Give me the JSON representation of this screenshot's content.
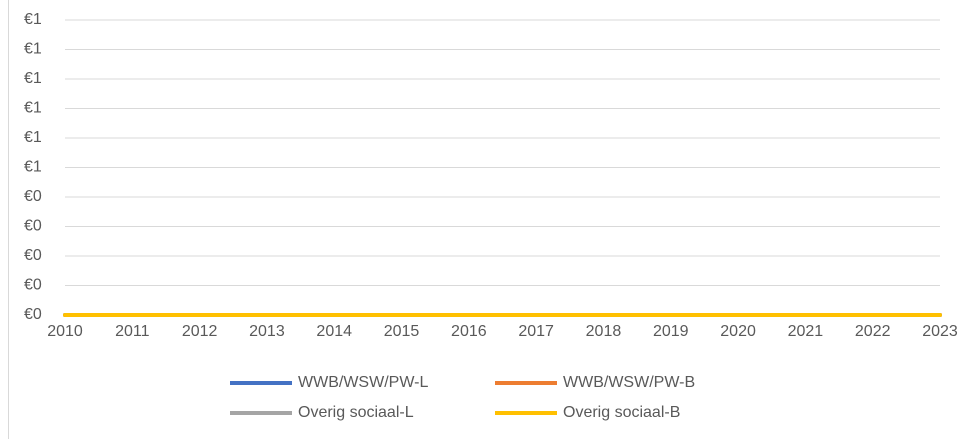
{
  "chart_data": {
    "type": "line",
    "categories": [
      "2010",
      "2011",
      "2012",
      "2013",
      "2014",
      "2015",
      "2016",
      "2017",
      "2018",
      "2019",
      "2020",
      "2021",
      "2022",
      "2023"
    ],
    "series": [
      {
        "name": "WWB/WSW/PW-L",
        "color": "#4472c4",
        "values": [
          0,
          0,
          0,
          0,
          0,
          0,
          0,
          0,
          0,
          0,
          0,
          0,
          0,
          0
        ]
      },
      {
        "name": "WWB/WSW/PW-B",
        "color": "#ed7d31",
        "values": [
          0,
          0,
          0,
          0,
          0,
          0,
          0,
          0,
          0,
          0,
          0,
          0,
          0,
          0
        ]
      },
      {
        "name": "Overig sociaal-L",
        "color": "#a5a5a5",
        "values": [
          0,
          0,
          0,
          0,
          0,
          0,
          0,
          0,
          0,
          0,
          0,
          0,
          0,
          0
        ]
      },
      {
        "name": "Overig sociaal-B",
        "color": "#ffc000",
        "values": [
          0,
          0,
          0,
          0,
          0,
          0,
          0,
          0,
          0,
          0,
          0,
          0,
          0,
          0
        ]
      }
    ],
    "ylim": [
      0,
      1
    ],
    "yticks": [
      {
        "value": 0,
        "label": "€0"
      },
      {
        "value": 0.1,
        "label": "€0"
      },
      {
        "value": 0.2,
        "label": "€0"
      },
      {
        "value": 0.3,
        "label": "€0"
      },
      {
        "value": 0.4,
        "label": "€0"
      },
      {
        "value": 0.5,
        "label": "€1"
      },
      {
        "value": 0.6,
        "label": "€1"
      },
      {
        "value": 0.7,
        "label": "€1"
      },
      {
        "value": 0.8,
        "label": "€1"
      },
      {
        "value": 0.9,
        "label": "€1"
      },
      {
        "value": 1,
        "label": "€1"
      }
    ],
    "grid": true,
    "legend": "bottom"
  }
}
